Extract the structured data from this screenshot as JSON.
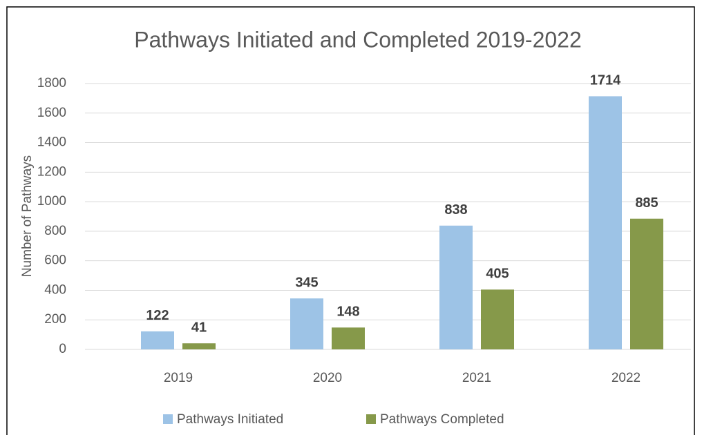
{
  "chart_data": {
    "type": "bar",
    "title": "Pathways Initiated and Completed 2019-2022",
    "y_label": "Number of Pathways",
    "categories": [
      "2019",
      "2020",
      "2021",
      "2022"
    ],
    "series": [
      {
        "name": "Pathways Initiated",
        "color": "#9dc3e6",
        "values": [
          122,
          345,
          838,
          1714
        ]
      },
      {
        "name": "Pathways Completed",
        "color": "#86994a",
        "values": [
          41,
          148,
          405,
          885
        ]
      }
    ],
    "ylim": [
      0,
      1800
    ],
    "yticks": [
      0,
      200,
      400,
      600,
      800,
      1000,
      1200,
      1400,
      1600,
      1800
    ],
    "grid": true,
    "legend": "bottom"
  }
}
